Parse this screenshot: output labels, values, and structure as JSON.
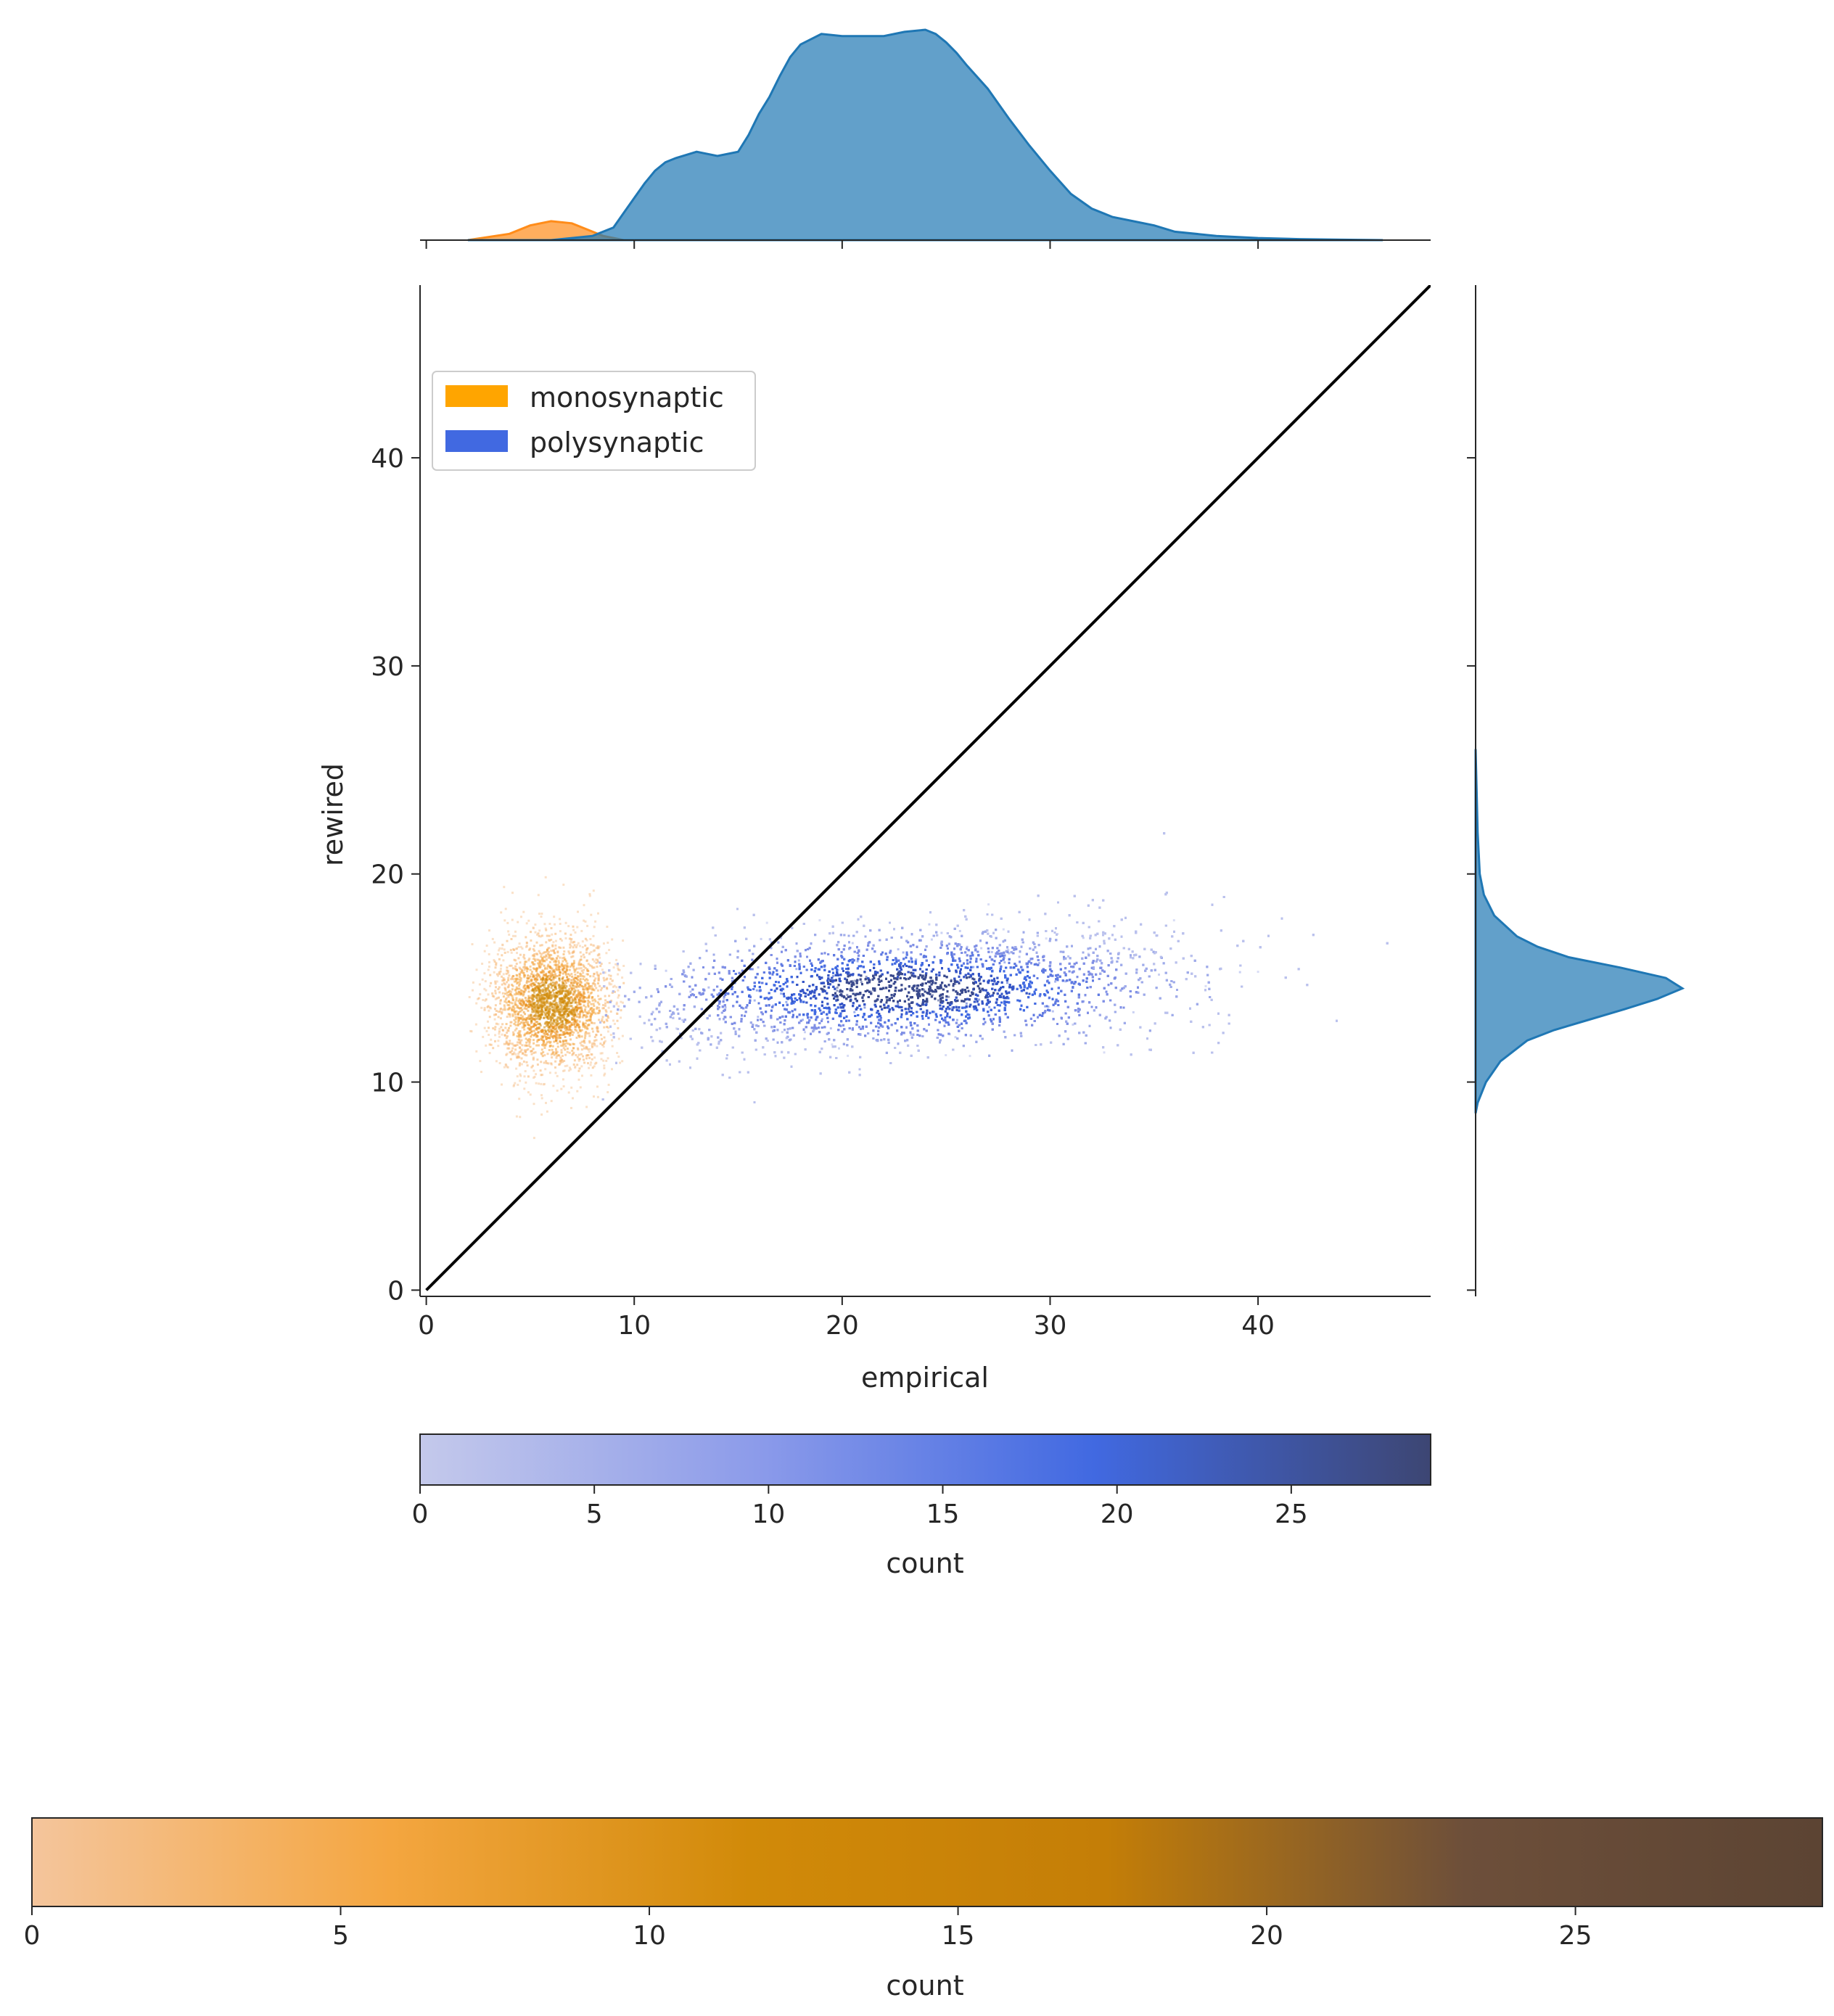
{
  "chart_data": [
    {
      "type": "heatmap",
      "xlabel": "empirical",
      "ylabel": "rewired",
      "xlim": [
        -0.3,
        48.3
      ],
      "ylim": [
        -0.3,
        48.3
      ],
      "x_ticks": [
        0,
        10,
        20,
        30,
        40
      ],
      "y_ticks": [
        0,
        10,
        20,
        30,
        40
      ],
      "grid": false,
      "legend": {
        "placement": "upper-left",
        "entries": [
          {
            "label": "monosynaptic",
            "color": "#ffa500"
          },
          {
            "label": "polysynaptic",
            "color": "#4169e1"
          }
        ]
      },
      "reference_line": {
        "from": [
          0,
          0
        ],
        "to": [
          48.3,
          48.3
        ],
        "color": "#000000",
        "label": ""
      },
      "series": [
        {
          "name": "monosynaptic",
          "color": "#ff8c1a",
          "x_center": 6.0,
          "x_spread": 1.5,
          "y_center": 13.8,
          "y_spread": 1.6,
          "x_range": [
            2,
            9.5
          ],
          "y_range": [
            9,
            20
          ]
        },
        {
          "name": "polysynaptic",
          "color": "#4169e1",
          "x_center": 23,
          "x_spread": 6.5,
          "y_center": 14.5,
          "y_spread": 1.3,
          "x_range": [
            8,
            47
          ],
          "y_range": [
            10,
            25
          ]
        }
      ]
    },
    {
      "type": "area",
      "name": "top-marginal",
      "x": [
        2,
        4,
        5,
        6,
        7,
        8,
        8.5,
        9,
        9.5,
        10,
        10.5,
        11,
        11.5,
        12,
        13,
        14,
        15,
        15.5,
        16,
        16.5,
        17,
        17.5,
        18,
        19,
        20,
        21,
        22,
        23,
        24,
        24.5,
        25,
        25.5,
        26,
        27,
        28,
        29,
        30,
        31,
        32,
        33,
        34,
        35,
        36,
        38,
        40,
        42,
        44,
        46
      ],
      "series": [
        {
          "name": "monosynaptic",
          "color": "#ff8c1a",
          "values": [
            0.0,
            0.03,
            0.07,
            0.09,
            0.08,
            0.04,
            0.02,
            0.01,
            0.0,
            0.0,
            0.0,
            0.0,
            0.0,
            0.0,
            0.0,
            0.0,
            0.0,
            0.0,
            0.0,
            0.0,
            0.0,
            0.0,
            0.0,
            0.0,
            0.0,
            0.0,
            0.0,
            0.0,
            0.0,
            0.0,
            0.0,
            0.0,
            0.0,
            0.0,
            0.0,
            0.0,
            0.0,
            0.0,
            0.0,
            0.0,
            0.0,
            0.0,
            0.0,
            0.0,
            0.0,
            0.0,
            0.0,
            0.0
          ]
        },
        {
          "name": "polysynaptic",
          "color": "#1f77b4",
          "values": [
            0.0,
            0.0,
            0.0,
            0.0,
            0.01,
            0.02,
            0.04,
            0.06,
            0.13,
            0.2,
            0.27,
            0.33,
            0.37,
            0.39,
            0.42,
            0.4,
            0.42,
            0.5,
            0.6,
            0.68,
            0.78,
            0.87,
            0.93,
            0.98,
            0.97,
            0.97,
            0.97,
            0.99,
            1.0,
            0.98,
            0.94,
            0.89,
            0.83,
            0.72,
            0.58,
            0.45,
            0.33,
            0.22,
            0.15,
            0.11,
            0.09,
            0.07,
            0.04,
            0.02,
            0.01,
            0.005,
            0.002,
            0.0
          ]
        }
      ]
    },
    {
      "type": "area",
      "name": "right-marginal",
      "y": [
        8.5,
        9,
        10,
        11,
        12,
        12.5,
        13,
        13.5,
        14,
        14.5,
        15,
        15.5,
        16,
        16.5,
        17,
        18,
        19,
        20,
        22,
        24,
        26
      ],
      "series": [
        {
          "name": "polysynaptic",
          "color": "#1f77b4",
          "values": [
            0.0,
            0.01,
            0.05,
            0.12,
            0.25,
            0.38,
            0.55,
            0.72,
            0.88,
            1.0,
            0.92,
            0.7,
            0.45,
            0.3,
            0.2,
            0.09,
            0.04,
            0.02,
            0.01,
            0.005,
            0.0
          ]
        }
      ]
    },
    {
      "type": "heatmap",
      "name": "colorbar-polysynaptic",
      "label": "count",
      "range": [
        0,
        29
      ],
      "ticks": [
        0,
        5,
        10,
        15,
        20,
        25
      ],
      "colors": [
        "#c4c9eb",
        "#8c9bea",
        "#4169e1",
        "#3d4673"
      ]
    },
    {
      "type": "heatmap",
      "name": "colorbar-monosynaptic",
      "label": "count",
      "range": [
        0,
        29
      ],
      "ticks": [
        0,
        5,
        10,
        15,
        20,
        25
      ],
      "colors": [
        "#f4c59c",
        "#f4a640",
        "#d18a09",
        "#c47e07",
        "#6d4f3a",
        "#5c4433"
      ]
    }
  ]
}
